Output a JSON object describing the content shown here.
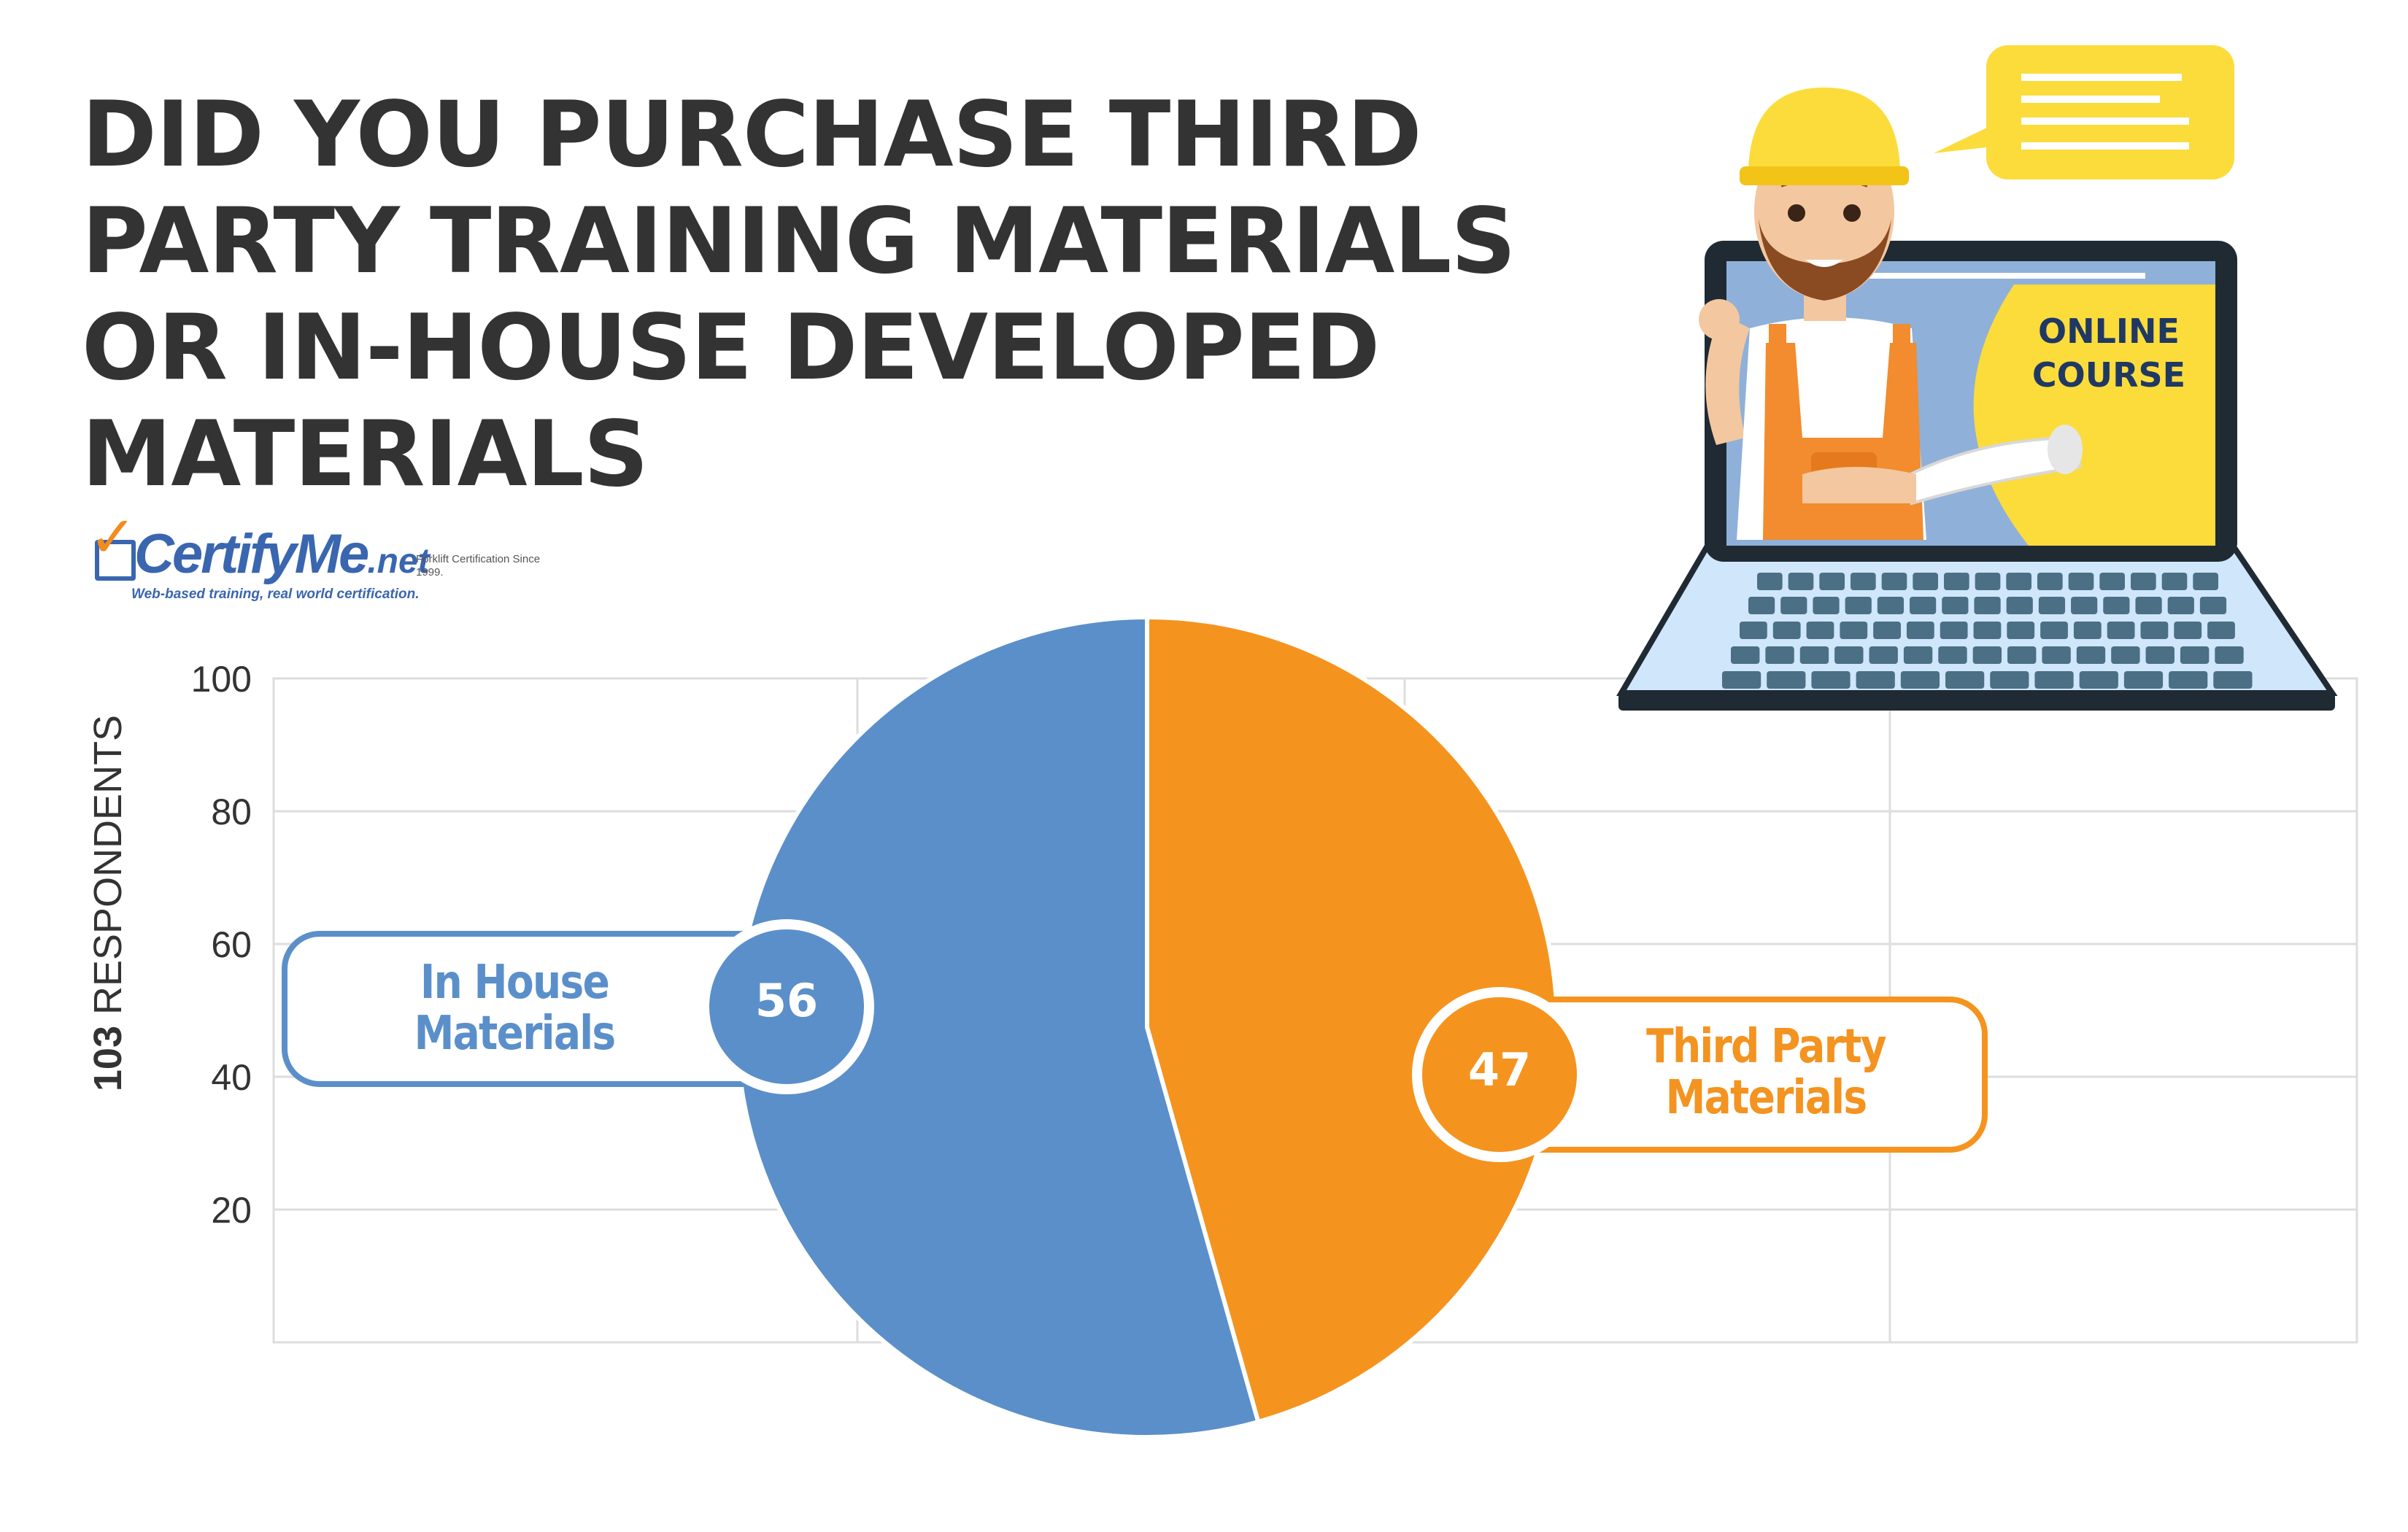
{
  "title": {
    "line1": "DID YOU PURCHASE THIRD",
    "line2": "PARTY TRAINING MATERIALS",
    "line3": "OR IN-HOUSE DEVELOPED",
    "line4": "MATERIALS"
  },
  "brand": {
    "name": "CertifyMe",
    "tld": ".net",
    "note": "Forklift Certification Since 1999.",
    "tagline": "Web-based training, real world certification."
  },
  "illustration": {
    "screen_text": "ONLINE COURSE"
  },
  "y_axis": {
    "count": "103",
    "label": "RESPONDENTS"
  },
  "colors": {
    "in_house": "#5b8fca",
    "third_party": "#f5931f",
    "title": "#333333",
    "brand_blue": "#3a66b0"
  },
  "chart_data": {
    "type": "pie",
    "title": "DID YOU PURCHASE THIRD PARTY TRAINING MATERIALS OR IN-HOUSE DEVELOPED MATERIALS",
    "categories": [
      "In House Materials",
      "Third Party Materials"
    ],
    "values": [
      56,
      47
    ],
    "total": 103,
    "ylabel": "103 RESPONDENTS",
    "background_axis": {
      "ticks": [
        20,
        40,
        60,
        80,
        100
      ],
      "ylim": [
        0,
        100
      ],
      "grid": true
    }
  }
}
